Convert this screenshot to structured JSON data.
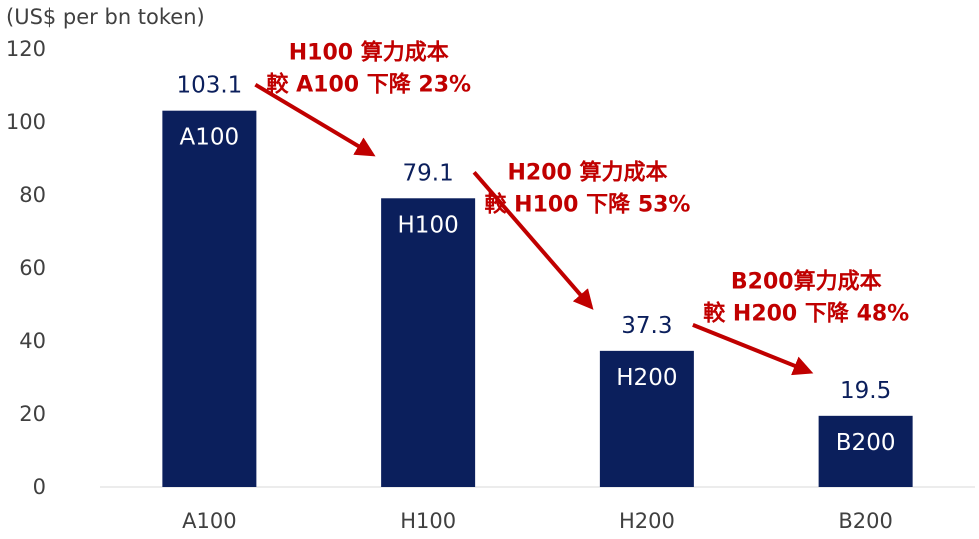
{
  "chart_data": {
    "type": "bar",
    "title": "",
    "ylabel": "(US$ per bn token)",
    "xlabel": "",
    "categories": [
      "A100",
      "H100",
      "H200",
      "B200"
    ],
    "values": [
      103.1,
      79.1,
      37.3,
      19.5
    ],
    "value_labels": [
      "103.1",
      "79.1",
      "37.3",
      "19.5"
    ],
    "bar_labels": [
      "A100",
      "H100",
      "H200",
      "B200"
    ],
    "ylim": [
      0,
      120
    ],
    "yticks": [
      "0",
      "20",
      "40",
      "60",
      "80",
      "100",
      "120"
    ],
    "grid": false,
    "legend": "none",
    "annotations": [
      {
        "lines": [
          "H100 算力成本",
          "較 A100 下降 23%"
        ],
        "from": "A100",
        "to": "H100"
      },
      {
        "lines": [
          "H200 算力成本",
          "較 H100 下降 53%"
        ],
        "from": "H100",
        "to": "H200"
      },
      {
        "lines": [
          "B200算力成本",
          "較 H200 下降 48%"
        ],
        "from": "H200",
        "to": "B200"
      }
    ],
    "colors": {
      "bar": "#0b1f5c",
      "value_label": "#0b1f5c",
      "annotation": "#c00000",
      "axis": "#d9d9d9"
    }
  }
}
